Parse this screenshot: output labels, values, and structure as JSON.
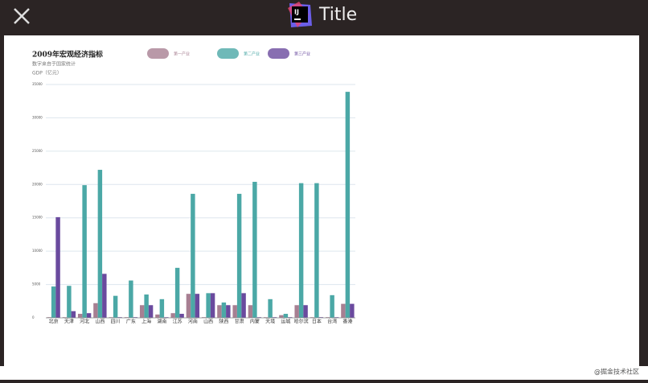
{
  "window": {
    "title": "Title"
  },
  "watermark": "@掘金技术社区",
  "chart_data": {
    "type": "bar",
    "title": "2009年宏观经济指标",
    "subtitle": "数字来自于国家统计",
    "y_label": "GDP（亿元）",
    "categories": [
      "北京",
      "天津",
      "河北",
      "山西",
      "四川",
      "广东",
      "上海",
      "湖南",
      "江苏",
      "河南",
      "山西",
      "陕西",
      "甘肃",
      "内蒙",
      "天境",
      "运城",
      "哈尔滨",
      "日本",
      "台湾",
      "香港"
    ],
    "series": [
      {
        "name": "第一产业",
        "color": "#a77f92",
        "values": [
          100,
          100,
          600,
          2200,
          100,
          100,
          1900,
          500,
          700,
          3600,
          100,
          1900,
          1900,
          1900,
          100,
          400,
          1900,
          100,
          100,
          2100
        ]
      },
      {
        "name": "第二产业",
        "color": "#4ba8a6",
        "values": [
          4700,
          4800,
          19900,
          22200,
          3300,
          5600,
          3500,
          2800,
          7500,
          18600,
          3700,
          2300,
          18600,
          20400,
          2800,
          600,
          20200,
          20200,
          3400,
          33900
        ]
      },
      {
        "name": "第三产业",
        "color": "#6a4a9e",
        "values": [
          15100,
          1000,
          700,
          6600,
          100,
          100,
          1900,
          100,
          600,
          3600,
          3700,
          1900,
          3700,
          100,
          100,
          100,
          1900,
          100,
          100,
          2100
        ]
      }
    ],
    "ylim": [
      0,
      35000
    ],
    "yticks": [
      0,
      5000,
      10000,
      15000,
      20000,
      25000,
      30000,
      35000
    ],
    "grid": true,
    "legend": "top"
  }
}
